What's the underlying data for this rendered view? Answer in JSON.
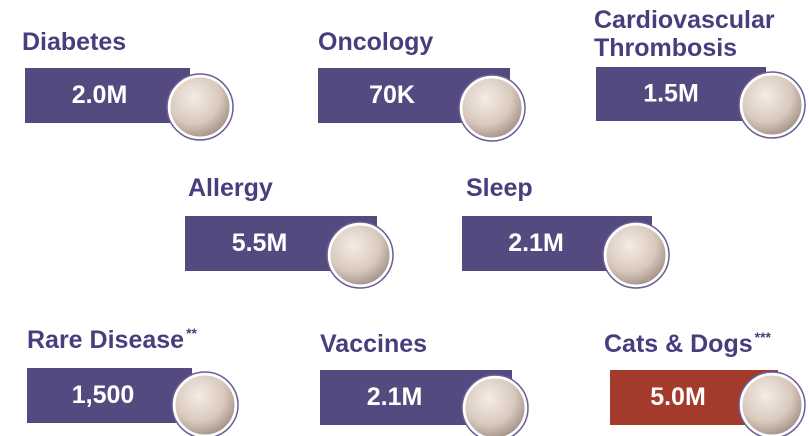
{
  "items": [
    {
      "label": "Diabetes",
      "value": "2.0M",
      "color": "#554a80"
    },
    {
      "label": "Oncology",
      "value": "70K",
      "color": "#554a80"
    },
    {
      "label": [
        "Cardiovascular",
        "Thrombosis"
      ],
      "value": "1.5M",
      "color": "#554a80"
    },
    {
      "label": "Allergy",
      "value": "5.5M",
      "color": "#554a80"
    },
    {
      "label": "Sleep",
      "value": "2.1M",
      "color": "#554a80"
    },
    {
      "label": "Rare Disease",
      "note": "**",
      "value": "1,500",
      "color": "#554a80"
    },
    {
      "label": "Vaccines",
      "value": "2.1M",
      "color": "#554a80"
    },
    {
      "label": "Cats & Dogs",
      "note": "***",
      "value": "5.0M",
      "color": "#a33a2b"
    }
  ]
}
